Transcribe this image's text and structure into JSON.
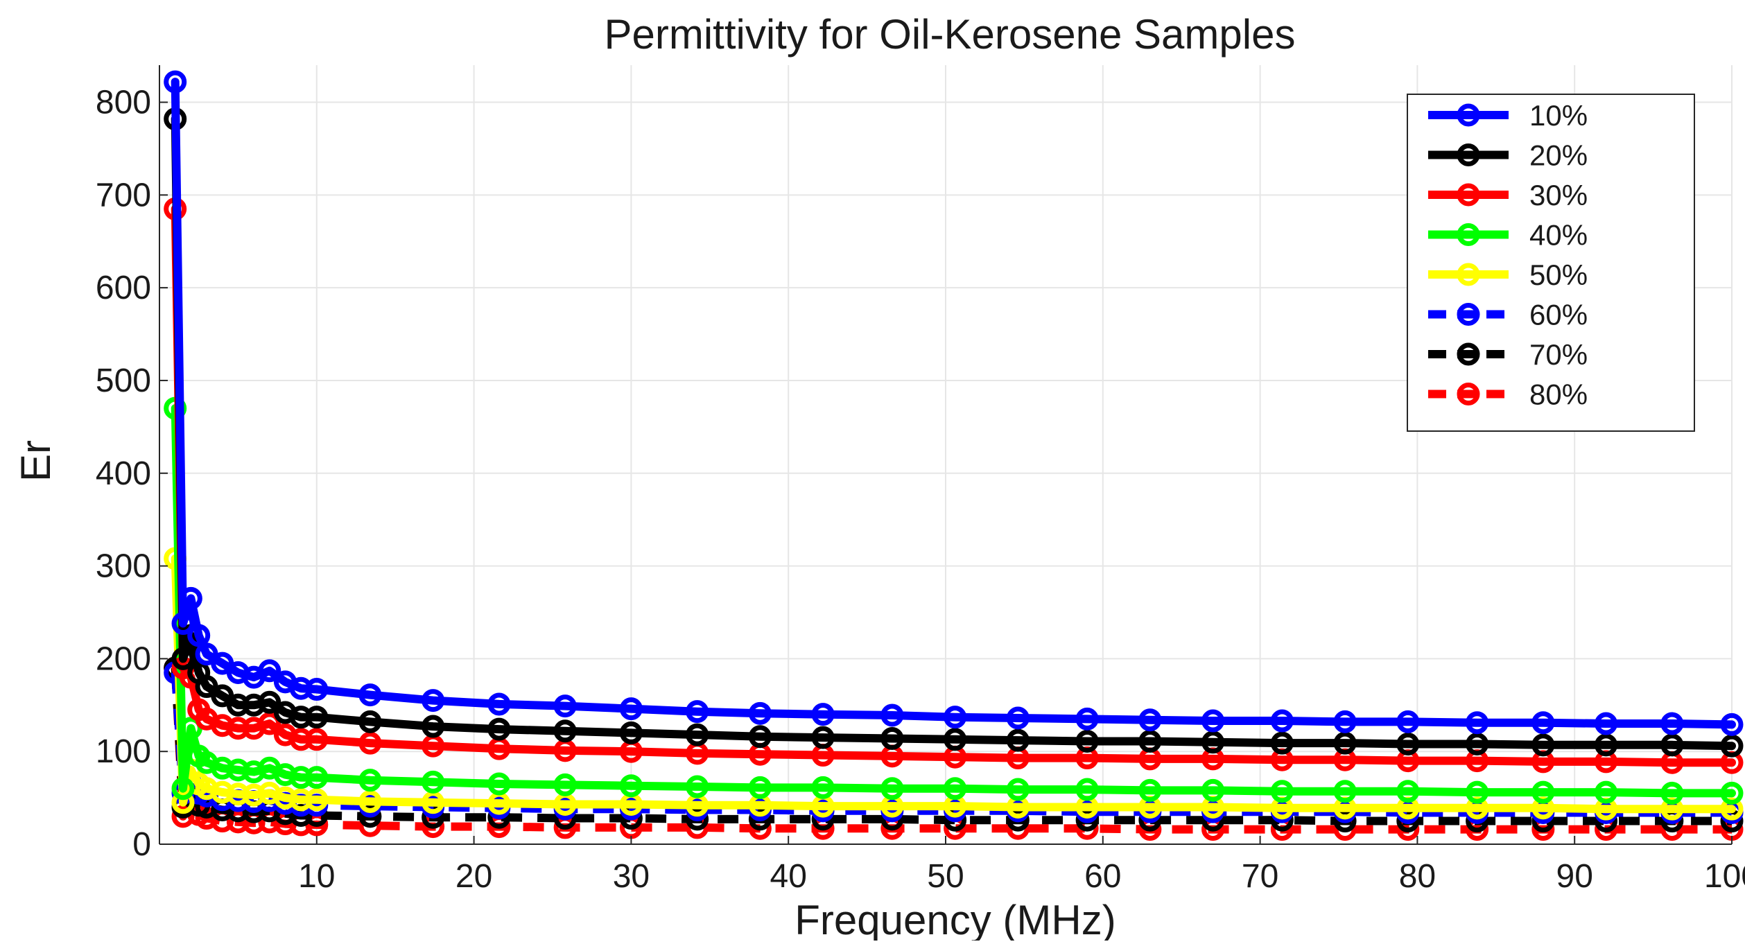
{
  "chart_data": {
    "type": "line",
    "title": "Permittivity for Oil-Kerosene Samples",
    "xlabel": "Frequency (MHz)",
    "ylabel": "Er",
    "xlim": [
      0,
      100
    ],
    "ylim": [
      0,
      840
    ],
    "xticks": [
      10,
      20,
      30,
      40,
      50,
      60,
      70,
      80,
      90,
      100
    ],
    "xtick_labels": [
      "10",
      "20",
      "30",
      "40",
      "50",
      "60",
      "70",
      "80",
      "90",
      "100"
    ],
    "yticks": [
      0,
      100,
      200,
      300,
      400,
      500,
      600,
      700,
      800
    ],
    "ytick_labels": [
      "0",
      "100",
      "200",
      "300",
      "400",
      "500",
      "600",
      "700",
      "800"
    ],
    "grid": true,
    "legend_position": "top-right",
    "x": [
      1,
      1.5,
      2,
      2.5,
      3,
      4,
      5,
      6,
      7,
      8,
      9,
      10,
      13.4,
      17.4,
      21.6,
      25.8,
      30,
      34.2,
      38.2,
      42.2,
      46.6,
      50.6,
      54.6,
      59,
      63,
      67,
      71.4,
      75.4,
      79.4,
      83.8,
      88,
      92,
      96.2,
      100
    ],
    "series": [
      {
        "name": "10%",
        "color": "#0000ff",
        "dash": "solid",
        "values": [
          822,
          238,
          265,
          225,
          205,
          195,
          185,
          180,
          187,
          175,
          168,
          167,
          161,
          155,
          151,
          149,
          146,
          143,
          141,
          140,
          139,
          137,
          136,
          135,
          134,
          133,
          133,
          132,
          132,
          131,
          131,
          130,
          130,
          129
        ]
      },
      {
        "name": "20%",
        "color": "#000000",
        "dash": "solid",
        "values": [
          782,
          200,
          225,
          185,
          170,
          160,
          150,
          150,
          153,
          142,
          137,
          137,
          132,
          127,
          124,
          122,
          120,
          118,
          116,
          115,
          114,
          113,
          112,
          111,
          111,
          110,
          109,
          109,
          108,
          108,
          107,
          107,
          107,
          106
        ]
      },
      {
        "name": "30%",
        "color": "#ff0000",
        "dash": "solid",
        "values": [
          685,
          190,
          180,
          145,
          135,
          128,
          125,
          125,
          130,
          118,
          113,
          113,
          109,
          106,
          103,
          101,
          100,
          98,
          97,
          96,
          95,
          94,
          93,
          93,
          92,
          92,
          91,
          91,
          90,
          90,
          89,
          89,
          88,
          88
        ]
      },
      {
        "name": "40%",
        "color": "#00ff00",
        "dash": "solid",
        "values": [
          470,
          60,
          125,
          95,
          88,
          82,
          80,
          78,
          82,
          75,
          72,
          72,
          69,
          67,
          65,
          64,
          63,
          62,
          61,
          61,
          60,
          60,
          59,
          59,
          58,
          58,
          57,
          57,
          57,
          56,
          56,
          56,
          55,
          55
        ]
      },
      {
        "name": "50%",
        "color": "#ffff00",
        "dash": "solid",
        "values": [
          308,
          45,
          80,
          65,
          60,
          56,
          54,
          53,
          55,
          50,
          48,
          48,
          46,
          45,
          44,
          43,
          43,
          42,
          42,
          41,
          41,
          41,
          40,
          40,
          40,
          40,
          39,
          39,
          39,
          39,
          39,
          38,
          38,
          38
        ]
      },
      {
        "name": "60%",
        "color": "#0000ff",
        "dash": "dashed",
        "values": [
          185,
          55,
          65,
          55,
          52,
          48,
          47,
          46,
          47,
          44,
          42,
          42,
          41,
          40,
          39,
          38,
          38,
          37,
          37,
          36,
          36,
          36,
          36,
          35,
          35,
          35,
          35,
          35,
          34,
          34,
          34,
          34,
          34,
          34
        ]
      },
      {
        "name": "70%",
        "color": "#000000",
        "dash": "dashed",
        "values": [
          190,
          40,
          52,
          42,
          40,
          37,
          36,
          35,
          36,
          33,
          31,
          31,
          30,
          29,
          29,
          28,
          28,
          27,
          27,
          27,
          27,
          26,
          26,
          26,
          26,
          26,
          26,
          25,
          25,
          25,
          25,
          25,
          25,
          25
        ]
      },
      {
        "name": "80%",
        "color": "#ff0000",
        "dash": "dashed",
        "values": [
          190,
          30,
          45,
          32,
          28,
          25,
          24,
          23,
          24,
          22,
          21,
          21,
          20,
          19,
          19,
          18,
          18,
          18,
          17,
          17,
          17,
          17,
          17,
          17,
          16,
          16,
          16,
          16,
          16,
          16,
          16,
          16,
          16,
          16
        ]
      }
    ]
  }
}
